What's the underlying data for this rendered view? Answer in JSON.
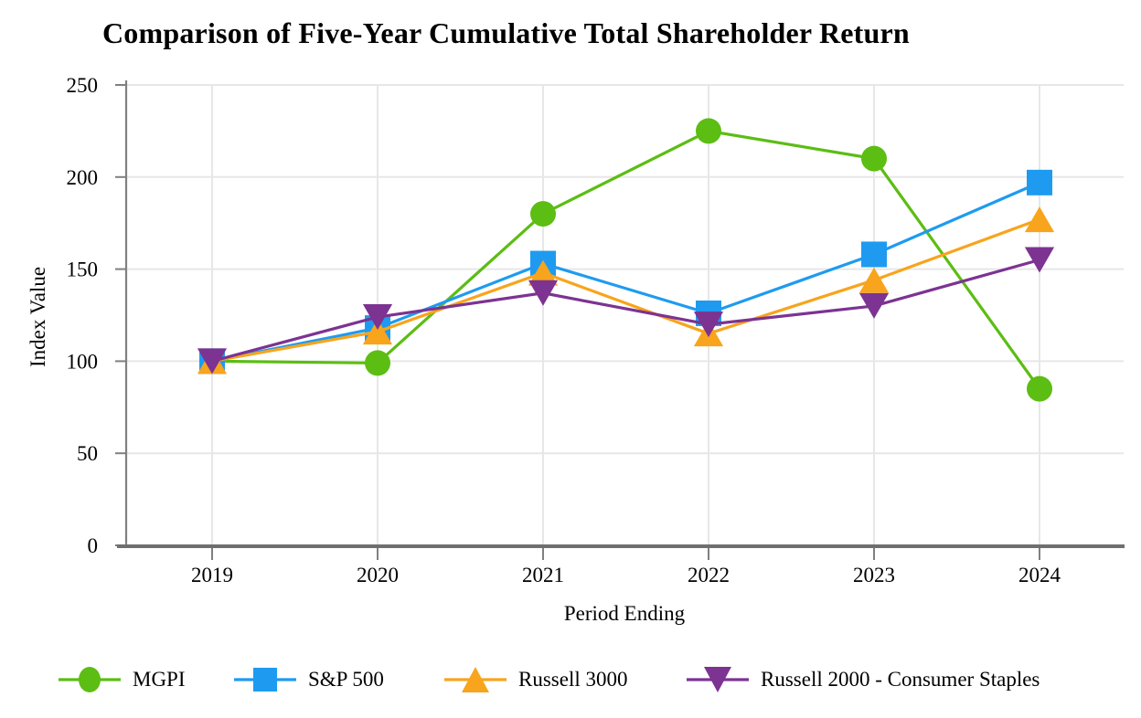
{
  "chart_data": {
    "type": "line",
    "title": "Comparison of Five-Year Cumulative Total Shareholder Return",
    "xlabel": "Period Ending",
    "ylabel": "Index Value",
    "categories": [
      "2019",
      "2020",
      "2021",
      "2022",
      "2023",
      "2024"
    ],
    "series": [
      {
        "name": "MGPI",
        "marker": "circle",
        "color": "#5CBD13",
        "values": [
          100,
          99,
          180,
          225,
          210,
          85
        ]
      },
      {
        "name": "S&P 500",
        "marker": "square",
        "color": "#1E9BF0",
        "values": [
          100,
          118,
          153,
          126,
          158,
          197
        ]
      },
      {
        "name": "Russell 3000",
        "marker": "triangle-up",
        "color": "#F8A41C",
        "values": [
          100,
          116,
          148,
          115,
          144,
          177
        ]
      },
      {
        "name": "Russell 2000 - Consumer Staples",
        "marker": "triangle-down",
        "color": "#7C3392",
        "values": [
          100,
          124,
          137,
          120,
          130,
          155
        ]
      }
    ],
    "ylim": [
      0,
      250
    ],
    "yticks": [
      0,
      50,
      100,
      150,
      200,
      250
    ],
    "grid": true,
    "legend_position": "bottom"
  },
  "colors": {
    "axis": "#808080",
    "axis_bottom": "#6F6F6F",
    "grid": "#E7E7E7",
    "text": "#000000",
    "background": "#FFFFFF"
  }
}
